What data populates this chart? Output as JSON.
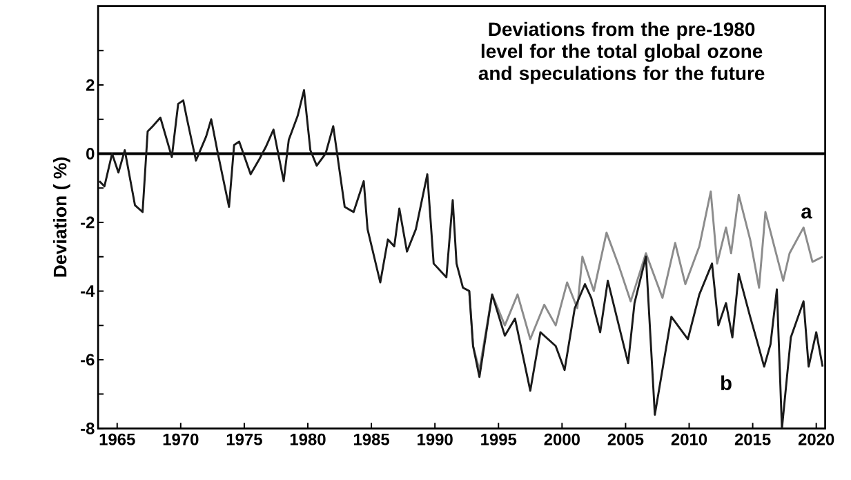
{
  "chart_data": {
    "type": "line",
    "title": "Deviations from the pre-1980 level for the total global ozone and speculations for the future",
    "ylabel": "Deviation ( %)",
    "xlim": [
      1963.5,
      2020.7
    ],
    "ylim": [
      -8,
      4.3
    ],
    "xticks": [
      1965,
      1970,
      1975,
      1980,
      1985,
      1990,
      1995,
      2000,
      2005,
      2010,
      2015,
      2020
    ],
    "yticks": [
      -8,
      {
        "value": -7,
        "label": null
      },
      -6,
      {
        "value": -5,
        "label": null
      },
      -4,
      {
        "value": -3,
        "label": null
      },
      -2,
      {
        "value": -1,
        "label": null
      },
      0,
      {
        "value": 1,
        "label": null
      },
      2,
      {
        "value": 3,
        "label": null
      }
    ],
    "grid": false,
    "legend": false,
    "marker": "none",
    "line_style": "solid",
    "ref_lines": [
      {
        "axis": "y",
        "value": 0,
        "color": "#000000"
      }
    ],
    "series": [
      {
        "name": "a",
        "color": "#8c8c8c",
        "x": [
          1992.7,
          1993.0,
          1993.5,
          1994.5,
          1995.5,
          1996.5,
          1997.5,
          1998.6,
          1999.5,
          2000.4,
          2001.2,
          2001.6,
          2002.5,
          2003.5,
          2004.5,
          2005.4,
          2006.6,
          2007.9,
          2008.9,
          2009.7,
          2010.8,
          2011.7,
          2012.2,
          2012.9,
          2013.3,
          2013.9,
          2014.8,
          2015.5,
          2016.0,
          2016.7,
          2017.4,
          2017.9,
          2019.0,
          2019.7,
          2020.5
        ],
        "values": [
          -4.0,
          -5.6,
          -6.3,
          -4.1,
          -5.0,
          -4.1,
          -5.4,
          -4.4,
          -5.0,
          -3.75,
          -4.5,
          -3.0,
          -4.0,
          -2.3,
          -3.3,
          -4.3,
          -2.9,
          -4.2,
          -2.6,
          -3.8,
          -2.7,
          -1.1,
          -3.2,
          -2.15,
          -2.9,
          -1.2,
          -2.5,
          -3.9,
          -1.7,
          -2.7,
          -3.7,
          -2.9,
          -2.15,
          -3.15,
          -3.0
        ]
      },
      {
        "name": "b",
        "color": "#1a1a1a",
        "x": [
          1963.6,
          1964.0,
          1964.6,
          1965.1,
          1965.6,
          1966.4,
          1967.0,
          1967.4,
          1967.8,
          1968.4,
          1969.3,
          1969.8,
          1970.2,
          1970.5,
          1971.2,
          1972.0,
          1972.4,
          1972.9,
          1973.8,
          1974.2,
          1974.6,
          1975.5,
          1976.2,
          1976.7,
          1977.3,
          1978.1,
          1978.5,
          1979.2,
          1979.7,
          1980.2,
          1980.7,
          1981.4,
          1982.0,
          1982.9,
          1983.6,
          1984.4,
          1984.7,
          1985.7,
          1986.3,
          1986.8,
          1987.2,
          1987.8,
          1988.5,
          1989.4,
          1989.9,
          1990.9,
          1991.4,
          1991.7,
          1992.2,
          1992.7,
          1993.0,
          1993.5,
          1994.5,
          1995.5,
          1996.3,
          1997.5,
          1998.3,
          1999.5,
          2000.2,
          2001.0,
          2001.8,
          2002.3,
          2003.0,
          2003.6,
          2005.2,
          2005.7,
          2006.6,
          2007.3,
          2008.6,
          2009.9,
          2010.8,
          2011.8,
          2012.3,
          2012.9,
          2013.4,
          2013.9,
          2014.8,
          2015.3,
          2015.9,
          2016.4,
          2016.9,
          2017.3,
          2018.0,
          2019.0,
          2019.4,
          2020.0,
          2020.5
        ],
        "values": [
          -0.8,
          -0.95,
          0,
          -0.55,
          0.1,
          -1.5,
          -1.7,
          0.65,
          0.8,
          1.05,
          -0.1,
          1.45,
          1.55,
          1.0,
          -0.2,
          0.5,
          1.0,
          0.05,
          -1.55,
          0.25,
          0.35,
          -0.6,
          -0.15,
          0.2,
          0.7,
          -0.8,
          0.4,
          1.1,
          1.85,
          0.1,
          -0.35,
          0,
          0.8,
          -1.55,
          -1.7,
          -0.8,
          -2.2,
          -3.75,
          -2.5,
          -2.7,
          -1.6,
          -2.85,
          -2.2,
          -0.6,
          -3.2,
          -3.6,
          -1.35,
          -3.2,
          -3.9,
          -4.0,
          -5.6,
          -6.5,
          -4.1,
          -5.3,
          -4.8,
          -6.9,
          -5.2,
          -5.6,
          -6.3,
          -4.5,
          -3.8,
          -4.2,
          -5.2,
          -3.7,
          -6.1,
          -4.35,
          -3.0,
          -7.6,
          -4.75,
          -5.4,
          -4.1,
          -3.2,
          -5.0,
          -4.35,
          -5.35,
          -3.5,
          -4.75,
          -5.4,
          -6.2,
          -5.55,
          -3.95,
          -8.0,
          -5.35,
          -4.3,
          -6.2,
          -5.2,
          -6.2
        ]
      }
    ]
  }
}
